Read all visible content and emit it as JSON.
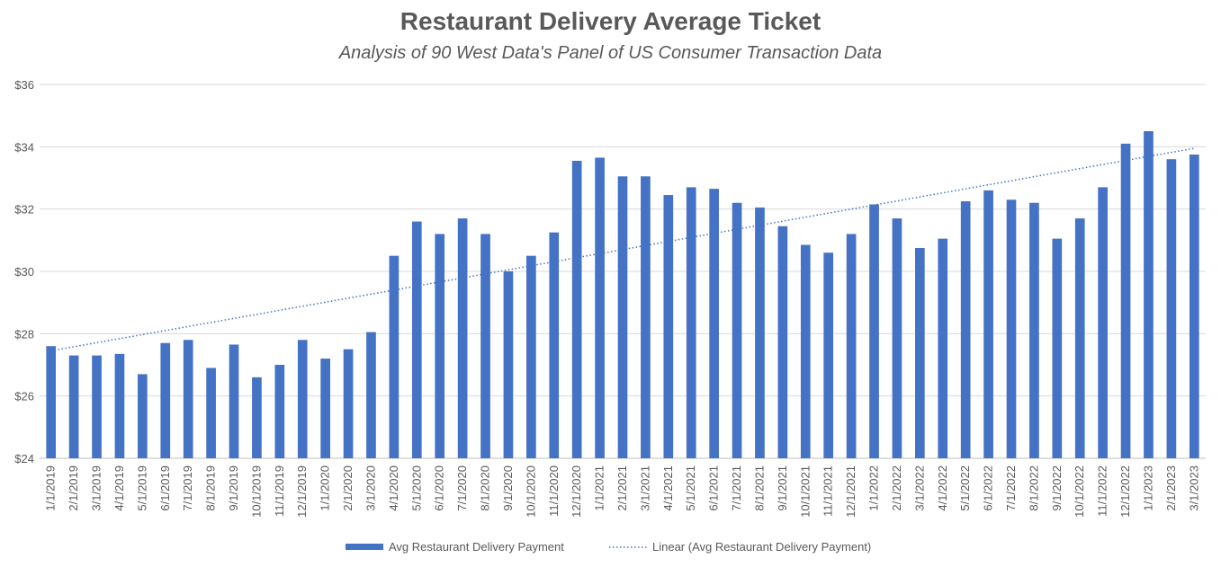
{
  "chart_data": {
    "type": "bar",
    "title": "Restaurant Delivery Average Ticket",
    "subtitle": "Analysis of 90 West Data's Panel of US Consumer Transaction Data",
    "xlabel": "",
    "ylabel": "",
    "ylim": [
      24,
      36
    ],
    "yticks": [
      24,
      26,
      28,
      30,
      32,
      34,
      36
    ],
    "ytick_labels": [
      "$24",
      "$26",
      "$28",
      "$30",
      "$32",
      "$34",
      "$36"
    ],
    "grid": true,
    "legend_position": "bottom",
    "categories": [
      "1/1/2019",
      "2/1/2019",
      "3/1/2019",
      "4/1/2019",
      "5/1/2019",
      "6/1/2019",
      "7/1/2019",
      "8/1/2019",
      "9/1/2019",
      "10/1/2019",
      "11/1/2019",
      "12/1/2019",
      "1/1/2020",
      "2/1/2020",
      "3/1/2020",
      "4/1/2020",
      "5/1/2020",
      "6/1/2020",
      "7/1/2020",
      "8/1/2020",
      "9/1/2020",
      "10/1/2020",
      "11/1/2020",
      "12/1/2020",
      "1/1/2021",
      "2/1/2021",
      "3/1/2021",
      "4/1/2021",
      "5/1/2021",
      "6/1/2021",
      "7/1/2021",
      "8/1/2021",
      "9/1/2021",
      "10/1/2021",
      "11/1/2021",
      "12/1/2021",
      "1/1/2022",
      "2/1/2022",
      "3/1/2022",
      "4/1/2022",
      "5/1/2022",
      "6/1/2022",
      "7/1/2022",
      "8/1/2022",
      "9/1/2022",
      "10/1/2022",
      "11/1/2022",
      "12/1/2022",
      "1/1/2023",
      "2/1/2023",
      "3/1/2023"
    ],
    "series": [
      {
        "name": "Avg Restaurant Delivery Payment",
        "color": "#4472C4",
        "values": [
          27.6,
          27.3,
          27.3,
          27.35,
          26.7,
          27.7,
          27.8,
          26.9,
          27.65,
          26.6,
          27.0,
          27.8,
          27.2,
          27.5,
          28.05,
          30.5,
          31.6,
          31.2,
          31.7,
          31.2,
          30.0,
          30.5,
          31.25,
          33.55,
          33.65,
          33.05,
          33.05,
          32.45,
          32.7,
          32.65,
          32.2,
          32.05,
          31.45,
          30.85,
          30.6,
          31.2,
          32.15,
          31.7,
          30.75,
          31.05,
          32.25,
          32.6,
          32.3,
          32.2,
          31.05,
          31.7,
          32.7,
          34.1,
          34.5,
          33.6,
          33.75
        ]
      }
    ],
    "trendline": {
      "name": "Linear (Avg Restaurant Delivery Payment)",
      "type": "linear",
      "color": "#4472C4",
      "start": 27.45,
      "end": 33.95
    }
  }
}
